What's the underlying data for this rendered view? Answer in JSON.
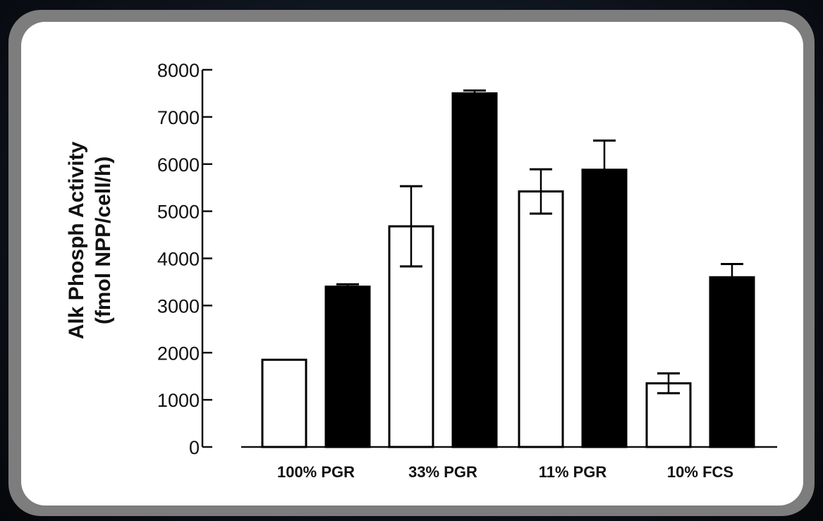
{
  "chart_data": {
    "type": "bar",
    "ylabel_lines": [
      "Alk Phosph Activity",
      "(fmol NPP/cell/h)"
    ],
    "xlabel": "",
    "title": "",
    "categories": [
      "100% PGR",
      "33% PGR",
      "11% PGR",
      "10% FCS"
    ],
    "series": [
      {
        "values": [
          1850,
          4680,
          5420,
          1350
        ],
        "errors": [
          0,
          850,
          470,
          210
        ],
        "fill": "#ffffff"
      },
      {
        "values": [
          3400,
          7500,
          5880,
          3600
        ],
        "errors": [
          50,
          60,
          620,
          280
        ],
        "fill": "#000000"
      }
    ],
    "ylim": [
      0,
      8000
    ],
    "yticks": [
      "0",
      "1000",
      "2000",
      "3000",
      "4000",
      "5000",
      "6000",
      "7000",
      "8000"
    ],
    "grid": false,
    "legend": "none"
  },
  "colors": {
    "background": "#0b0f16",
    "frame": "#7d7d7d",
    "panel": "#ffffff"
  }
}
